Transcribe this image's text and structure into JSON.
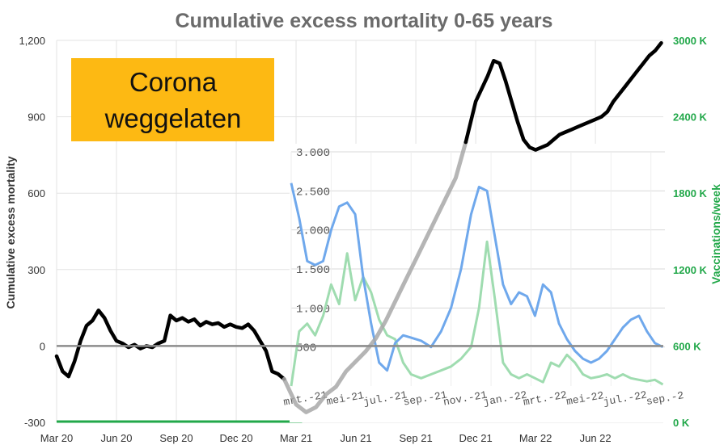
{
  "chart_data": [
    {
      "type": "line",
      "title": "Cumulative excess mortality 0-65 years",
      "ylabel": "Cumulative excess mortality",
      "ylim": [
        -300,
        1200
      ],
      "yticks": [
        "1,200",
        "900",
        "600",
        "300",
        "0",
        "-300"
      ],
      "ytick_values": [
        1200,
        900,
        600,
        300,
        0,
        -300
      ],
      "y2label": "Vaccinations/week",
      "y2lim": [
        0,
        3000
      ],
      "y2ticks": [
        "3000 K",
        "2400 K",
        "1800 K",
        "1200 K",
        "600 K",
        "0 K"
      ],
      "y2tick_values": [
        3000,
        2400,
        1800,
        1200,
        600,
        0
      ],
      "xticks": [
        "Mar 20",
        "Jun 20",
        "Sep 20",
        "Dec 20",
        "Mar 21",
        "Jun 21",
        "Sep 21",
        "Dec 21",
        "Mar 22",
        "Jun 22"
      ],
      "xtick_values": [
        0,
        3,
        6,
        9,
        12,
        15,
        18,
        21,
        24,
        27
      ],
      "xlim": [
        0,
        30.4
      ],
      "series": [
        {
          "name": "Cumulative excess mortality",
          "color": "#000000",
          "x": [
            0,
            0.3,
            0.6,
            0.9,
            1.2,
            1.5,
            1.8,
            2.1,
            2.4,
            2.7,
            3.0,
            3.3,
            3.6,
            3.9,
            4.2,
            4.5,
            4.8,
            5.1,
            5.4,
            5.7,
            6.0,
            6.3,
            6.6,
            6.9,
            7.2,
            7.5,
            7.8,
            8.1,
            8.4,
            8.7,
            9.0,
            9.3,
            9.6,
            9.9,
            10.2,
            10.5,
            10.8,
            11.1,
            11.4,
            11.7,
            12.0,
            12.5,
            13.0,
            13.5,
            14.0,
            14.5,
            15.0,
            15.5,
            16.0,
            16.5,
            17.0,
            17.5,
            18.0,
            18.5,
            19.0,
            19.5,
            20.0,
            20.5,
            21.0,
            21.3,
            21.6,
            21.9,
            22.2,
            22.5,
            22.8,
            23.1,
            23.4,
            23.7,
            24.0,
            24.3,
            24.6,
            24.9,
            25.2,
            25.5,
            25.8,
            26.1,
            26.4,
            26.7,
            27.0,
            27.3,
            27.6,
            27.9,
            28.2,
            28.5,
            28.8,
            29.1,
            29.4,
            29.7,
            30.0,
            30.3
          ],
          "values": [
            -40,
            -100,
            -120,
            -60,
            20,
            80,
            100,
            140,
            110,
            60,
            20,
            10,
            -5,
            5,
            -10,
            0,
            -5,
            10,
            20,
            120,
            100,
            110,
            95,
            105,
            80,
            95,
            85,
            90,
            75,
            85,
            75,
            70,
            85,
            60,
            20,
            -20,
            -100,
            -110,
            -130,
            -180,
            -230,
            -260,
            -240,
            -190,
            -160,
            -100,
            -60,
            -20,
            30,
            100,
            180,
            260,
            340,
            420,
            500,
            580,
            660,
            800,
            960,
            1010,
            1060,
            1120,
            1110,
            1040,
            960,
            880,
            810,
            780,
            770,
            780,
            790,
            810,
            830,
            840,
            850,
            860,
            870,
            880,
            890,
            900,
            920,
            960,
            990,
            1020,
            1050,
            1080,
            1110,
            1140,
            1160,
            1190
          ]
        },
        {
          "name": "Vaccinations/week (green axis line)",
          "color": "#22a84a",
          "x": [
            0,
            12.3
          ],
          "values": [
            -300,
            -300
          ]
        }
      ]
    },
    {
      "type": "line",
      "title": "",
      "yticks": [
        "3.000",
        "2.500",
        "2.000",
        "1.500",
        "1.000",
        "500"
      ],
      "ytick_values": [
        3000,
        2500,
        2000,
        1500,
        1000,
        500
      ],
      "ylim": [
        0,
        3000
      ],
      "xticks": [
        "mrt.-21",
        "mei-21",
        "jul.-21",
        "sep.-21",
        "nov.-21",
        "jan.-22",
        "mrt.-22",
        "mei-22",
        "jul.-22",
        "sep.-2"
      ],
      "xtick_values": [
        0,
        2,
        4,
        6,
        8,
        10,
        12,
        14,
        16,
        18
      ],
      "xlim": [
        0,
        18.7
      ],
      "series": [
        {
          "name": "Blue series",
          "color": "#6fa8ec",
          "x": [
            0,
            0.4,
            0.8,
            1.2,
            1.6,
            2.0,
            2.4,
            2.8,
            3.2,
            3.6,
            4.0,
            4.4,
            4.8,
            5.2,
            5.6,
            6.0,
            6.5,
            7.0,
            7.5,
            8.0,
            8.5,
            9.0,
            9.4,
            9.8,
            10.2,
            10.6,
            11.0,
            11.4,
            11.8,
            12.2,
            12.6,
            13.0,
            13.4,
            13.8,
            14.2,
            14.6,
            15.0,
            15.4,
            15.8,
            16.2,
            16.6,
            17.0,
            17.4,
            17.8,
            18.2,
            18.6
          ],
          "values": [
            2600,
            2150,
            1600,
            1550,
            1600,
            2000,
            2300,
            2350,
            2200,
            1400,
            800,
            300,
            200,
            550,
            650,
            620,
            580,
            500,
            700,
            1000,
            1500,
            2200,
            2550,
            2500,
            1900,
            1300,
            1050,
            1200,
            1150,
            900,
            1300,
            1200,
            800,
            600,
            450,
            350,
            300,
            350,
            450,
            600,
            750,
            850,
            900,
            700,
            550,
            500
          ]
        },
        {
          "name": "Green series",
          "color": "#9fdcb0",
          "x": [
            0,
            0.4,
            0.8,
            1.2,
            1.6,
            2.0,
            2.4,
            2.8,
            3.2,
            3.6,
            4.0,
            4.4,
            4.8,
            5.2,
            5.6,
            6.0,
            6.5,
            7.0,
            7.5,
            8.0,
            8.5,
            9.0,
            9.4,
            9.8,
            10.2,
            10.6,
            11.0,
            11.4,
            11.8,
            12.2,
            12.6,
            13.0,
            13.4,
            13.8,
            14.2,
            14.6,
            15.0,
            15.4,
            15.8,
            16.2,
            16.6,
            17.0,
            17.4,
            17.8,
            18.2,
            18.6
          ],
          "values": [
            0,
            700,
            800,
            650,
            900,
            1300,
            1050,
            1700,
            1100,
            1400,
            1200,
            850,
            650,
            600,
            300,
            150,
            100,
            150,
            200,
            250,
            350,
            500,
            1000,
            1850,
            1100,
            300,
            150,
            100,
            150,
            100,
            50,
            300,
            250,
            400,
            300,
            150,
            100,
            120,
            150,
            100,
            150,
            100,
            80,
            60,
            80,
            20
          ]
        }
      ]
    }
  ],
  "inset_images": {
    "grid_color": "#d9d9d9"
  },
  "annotation": {
    "line1": "Corona",
    "line2": "weggelaten",
    "background": "#fdb913"
  },
  "colors": {
    "title": "#6b6b6b",
    "black_line": "#000000",
    "grey_line": "#a8a8a8",
    "zero_line": "#8c8c8c",
    "green": "#22a84a",
    "blue": "#6fa8ec",
    "light_green": "#9fdcb0"
  }
}
